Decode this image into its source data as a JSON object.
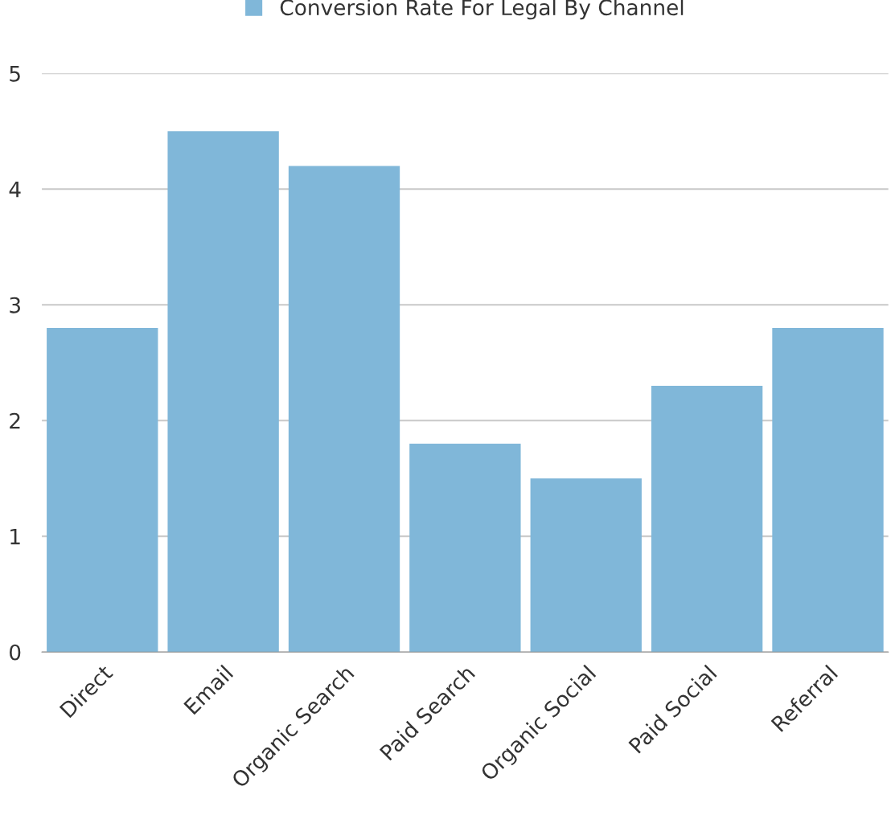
{
  "chart_data": {
    "type": "bar",
    "categories": [
      "Direct",
      "Email",
      "Organic Search",
      "Paid Search",
      "Organic Social",
      "Paid Social",
      "Referral"
    ],
    "series": [
      {
        "name": "Conversion Rate For Legal By Channel",
        "color": "#80b7d9",
        "values": [
          2.8,
          4.5,
          4.2,
          1.8,
          1.5,
          2.3,
          2.8
        ]
      }
    ],
    "ylim": [
      0,
      5
    ],
    "yticks": [
      0,
      1,
      2,
      3,
      4,
      5
    ],
    "grid": "y",
    "legend": "top"
  }
}
